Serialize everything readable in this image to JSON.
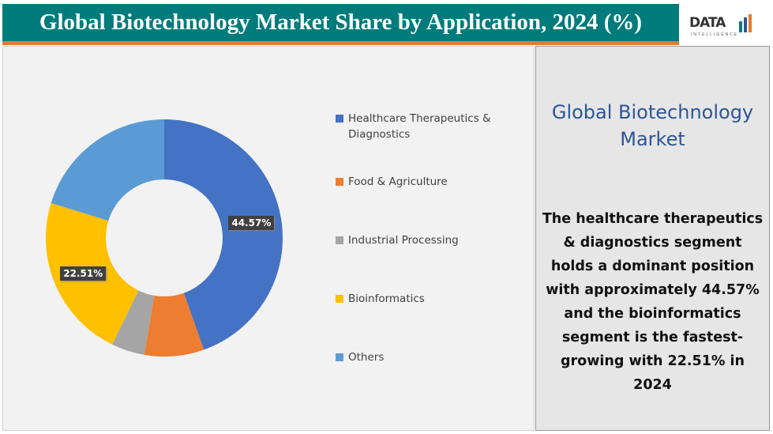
{
  "header": {
    "title": "Global Biotechnology Market Share by Application, 2024 (%)"
  },
  "logo": {
    "text": "DATA",
    "subtext": "INTELLIGENCE"
  },
  "side_panel": {
    "title": "Global Biotechnology Market",
    "body": "The healthcare therapeutics & diagnostics segment holds a dominant position with approximately 44.57%  and the bioinformatics segment is the fastest-growing with 22.51% in 2024"
  },
  "chart_data": {
    "type": "pie",
    "subtype": "donut",
    "title": "Global Biotechnology Market Share by Application, 2024 (%)",
    "legend_position": "right",
    "categories": [
      "Healthcare Therapeutics & Diagnostics",
      "Food & Agriculture",
      "Industrial Processing",
      "Bioinformatics",
      "Others"
    ],
    "values": [
      44.57,
      8.14,
      4.53,
      22.51,
      20.25
    ],
    "data_labels": [
      "44.57%",
      "",
      "",
      "22.51%",
      ""
    ],
    "colors": [
      "#4472c4",
      "#ed7d31",
      "#a5a5a5",
      "#ffc000",
      "#5b9bd5"
    ]
  }
}
